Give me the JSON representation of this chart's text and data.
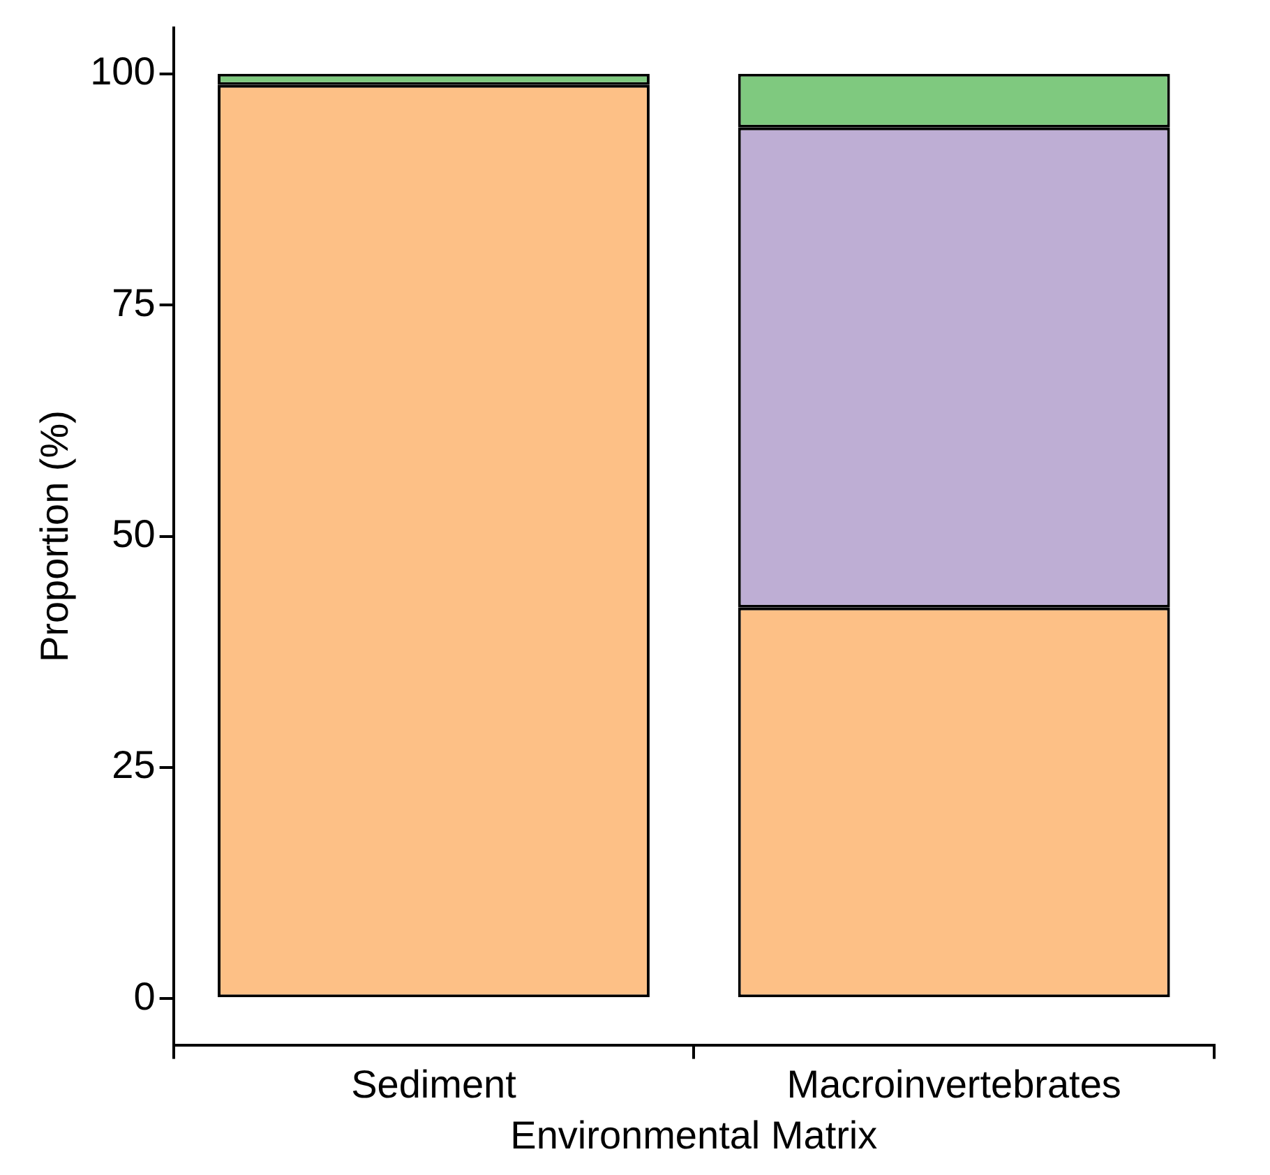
{
  "chart_data": {
    "type": "bar",
    "stacked": true,
    "xlabel": "Environmental Matrix",
    "ylabel": "Proportion (%)",
    "categories": [
      "Sediment",
      "Macroinvertebrates"
    ],
    "series": [
      {
        "color": "#fdc086",
        "values": [
          98.8,
          42.3
        ]
      },
      {
        "color": "#beaed4",
        "values": [
          0,
          51.9
        ]
      },
      {
        "color": "#7fc97f",
        "values": [
          1.2,
          5.8
        ]
      }
    ],
    "ylim": [
      -5,
      105
    ],
    "yticks": [
      0,
      25,
      50,
      75,
      100
    ],
    "legend": false
  }
}
